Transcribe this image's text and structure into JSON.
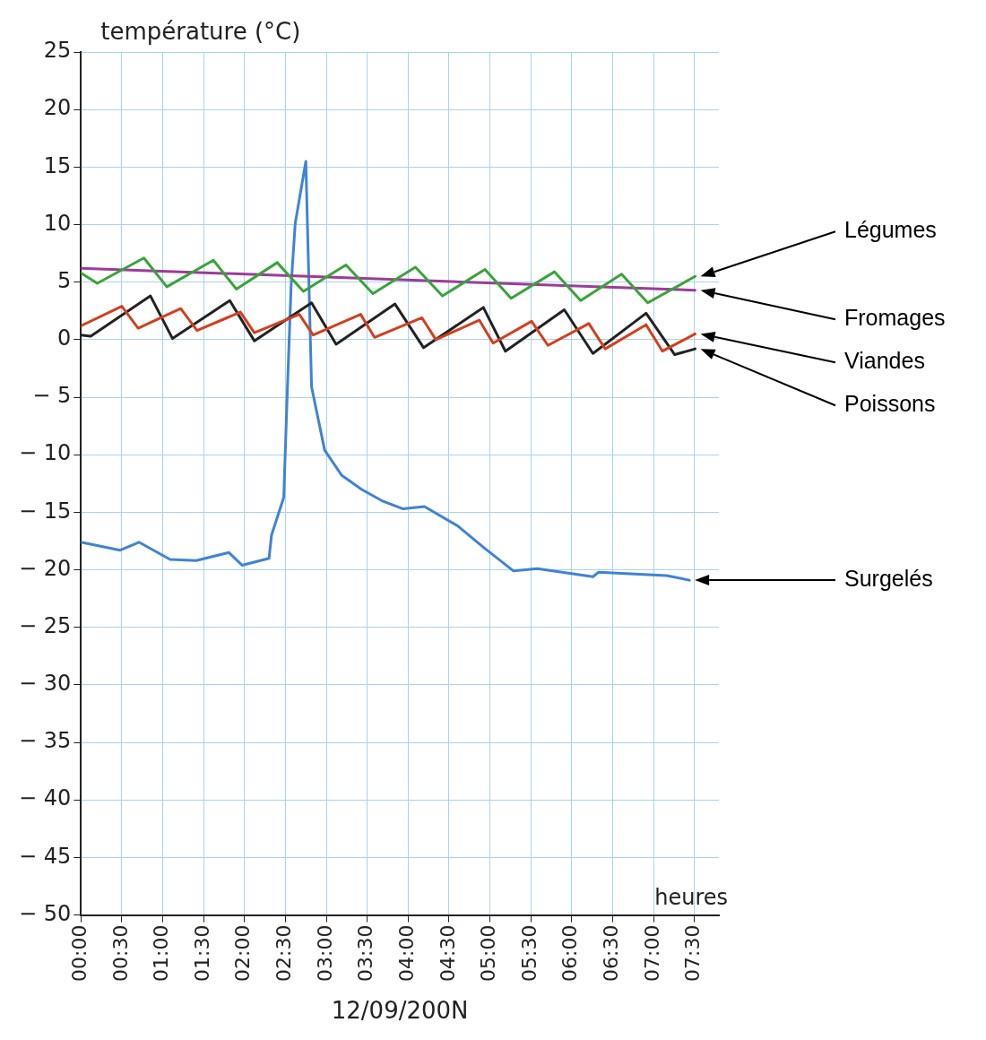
{
  "chart_data": {
    "type": "line",
    "ylabel": "température (°C)",
    "xlabel": "heures",
    "annotations": [
      "12/09/200N"
    ],
    "xlim": [
      0,
      7.8
    ],
    "ylim": [
      -50,
      25
    ],
    "xticks": [
      {
        "value": 0,
        "label": "00:00"
      },
      {
        "value": 0.5,
        "label": "00:30"
      },
      {
        "value": 1,
        "label": "01:00"
      },
      {
        "value": 1.5,
        "label": "01:30"
      },
      {
        "value": 2,
        "label": "02:00"
      },
      {
        "value": 2.5,
        "label": "02:30"
      },
      {
        "value": 3,
        "label": "03:00"
      },
      {
        "value": 3.5,
        "label": "03:30"
      },
      {
        "value": 4,
        "label": "04:00"
      },
      {
        "value": 4.5,
        "label": "04:30"
      },
      {
        "value": 5,
        "label": "05:00"
      },
      {
        "value": 5.5,
        "label": "05:30"
      },
      {
        "value": 6,
        "label": "06:00"
      },
      {
        "value": 6.5,
        "label": "06:30"
      },
      {
        "value": 7,
        "label": "07:00"
      },
      {
        "value": 7.5,
        "label": "07:30"
      }
    ],
    "yticks": [
      {
        "value": -50,
        "label": "− 50"
      },
      {
        "value": -45,
        "label": "− 45"
      },
      {
        "value": -40,
        "label": "− 40"
      },
      {
        "value": -35,
        "label": "− 35"
      },
      {
        "value": -30,
        "label": "− 30"
      },
      {
        "value": -25,
        "label": "− 25"
      },
      {
        "value": -20,
        "label": "− 20"
      },
      {
        "value": -15,
        "label": "− 15"
      },
      {
        "value": -10,
        "label": "− 10"
      },
      {
        "value": -5,
        "label": "− 5"
      },
      0,
      5,
      10,
      15,
      20,
      25
    ],
    "grid": true,
    "legend": false,
    "marker": "none",
    "line_style": "solid",
    "series": [
      {
        "name": "Légumes",
        "color": "#3aa33a",
        "x": [
          0,
          0.2,
          0.77,
          1.05,
          1.62,
          1.9,
          2.4,
          2.72,
          3.24,
          3.57,
          4.09,
          4.42,
          4.94,
          5.26,
          5.79,
          6.11,
          6.61,
          6.93,
          7.51
        ],
        "values": [
          5.8,
          4.9,
          7.1,
          4.6,
          6.9,
          4.4,
          6.7,
          4.2,
          6.5,
          4.0,
          6.3,
          3.8,
          6.1,
          3.6,
          5.9,
          3.4,
          5.7,
          3.2,
          5.5
        ]
      },
      {
        "name": "Fromages",
        "color": "#9b3c9b",
        "x": [
          0,
          7.51
        ],
        "values": [
          6.2,
          4.3
        ]
      },
      {
        "name": "Viandes",
        "color": "#d2401e",
        "x": [
          0,
          0.5,
          0.7,
          1.22,
          1.42,
          1.95,
          2.12,
          2.67,
          2.84,
          3.42,
          3.59,
          4.17,
          4.34,
          4.87,
          5.04,
          5.51,
          5.71,
          6.21,
          6.41,
          6.91,
          7.11,
          7.51
        ],
        "values": [
          1.2,
          2.9,
          1.0,
          2.7,
          0.8,
          2.4,
          0.6,
          2.2,
          0.4,
          2.2,
          0.2,
          1.9,
          0.0,
          1.7,
          -0.3,
          1.6,
          -0.5,
          1.4,
          -0.8,
          1.3,
          -1.0,
          0.5
        ]
      },
      {
        "name": "Poissons",
        "color": "#222222",
        "x": [
          0,
          0.12,
          0.85,
          1.12,
          1.82,
          2.12,
          2.82,
          3.12,
          3.84,
          4.19,
          4.92,
          5.19,
          5.91,
          6.26,
          6.91,
          7.26,
          7.51
        ],
        "values": [
          0.4,
          0.3,
          3.8,
          0.1,
          3.4,
          -0.1,
          3.2,
          -0.4,
          3.1,
          -0.7,
          2.8,
          -1.0,
          2.6,
          -1.2,
          2.3,
          -1.3,
          -0.8
        ]
      },
      {
        "name": "Surgelés",
        "color": "#3f83d6",
        "x": [
          0,
          0.48,
          0.71,
          1.09,
          1.41,
          1.81,
          1.97,
          2.3,
          2.33,
          2.48,
          2.52,
          2.57,
          2.62,
          2.75,
          2.82,
          2.98,
          3.19,
          3.43,
          3.68,
          3.94,
          4.2,
          4.61,
          4.93,
          5.29,
          5.58,
          6.26,
          6.33,
          7.16,
          7.44
        ],
        "values": [
          -17.6,
          -18.3,
          -17.6,
          -19.1,
          -19.2,
          -18.5,
          -19.6,
          -19.0,
          -17.0,
          -13.7,
          -5.2,
          4.7,
          10.1,
          15.5,
          -4.1,
          -9.6,
          -11.8,
          -13.0,
          -14.0,
          -14.7,
          -14.5,
          -16.2,
          -18.1,
          -20.1,
          -19.9,
          -20.6,
          -20.2,
          -20.5,
          -20.9
        ]
      }
    ]
  }
}
